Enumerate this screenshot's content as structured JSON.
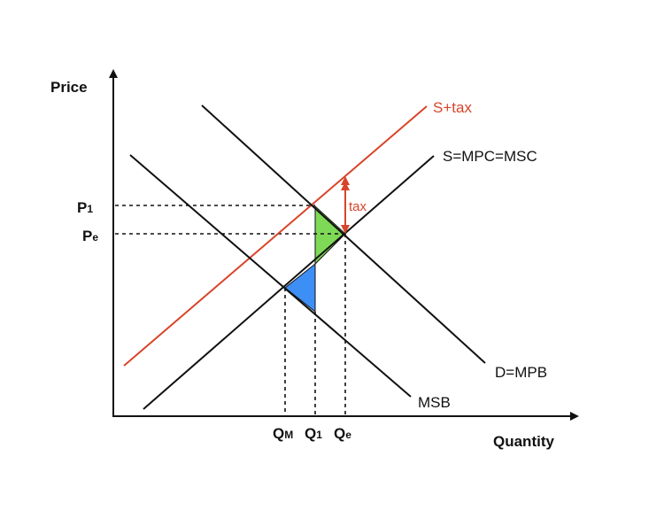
{
  "axes": {
    "y_label": "Price",
    "x_label": "Quantity"
  },
  "curves": {
    "s_tax": "S+tax",
    "supply": "S=MPC=MSC",
    "demand": "D=MPB",
    "msb": "MSB"
  },
  "price_ticks": {
    "p1": {
      "main": "P",
      "sub": "1"
    },
    "pe": {
      "main": "P",
      "sub": "e"
    }
  },
  "quantity_ticks": {
    "qm": {
      "main": "Q",
      "sub": "M"
    },
    "q1": {
      "main": "Q",
      "sub": "1"
    },
    "qe": {
      "main": "Q",
      "sub": "e"
    }
  },
  "tax_label": "tax",
  "colors": {
    "axis": "#111111",
    "s_tax_line": "#d9442a",
    "green_area": "#7ed957",
    "blue_area": "#3d8ff5"
  }
}
